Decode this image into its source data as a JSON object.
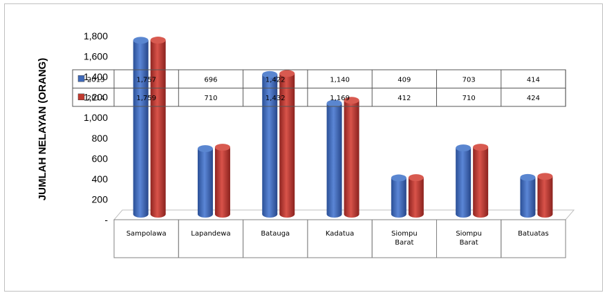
{
  "chart_data": {
    "type": "bar",
    "ylabel": "JUMLAH NELAYAN (ORANG)",
    "ylim": [
      0,
      1800
    ],
    "yticks": [
      "-",
      "200",
      "400",
      "600",
      "800",
      "1,000",
      "1,200",
      "1,400",
      "1,600",
      "1,800"
    ],
    "categories": [
      [
        "Sampolawa"
      ],
      [
        "Lapandewa"
      ],
      [
        "Batauga"
      ],
      [
        "Kadatua"
      ],
      [
        "Siompu",
        "Barat"
      ],
      [
        "Siompu",
        "Barat"
      ],
      [
        "Batuatas"
      ]
    ],
    "series": [
      {
        "name": "2013",
        "color": "#3f69b8",
        "values": [
          1757,
          696,
          1422,
          1140,
          409,
          703,
          414
        ],
        "labels": [
          "1,757",
          "696",
          "1,422",
          "1,140",
          "409",
          "703",
          "414"
        ]
      },
      {
        "name": "2014",
        "color": "#c0392f",
        "values": [
          1759,
          710,
          1432,
          1169,
          412,
          710,
          424
        ],
        "labels": [
          "1,759",
          "710",
          "1,432",
          "1,169",
          "412",
          "710",
          "424"
        ]
      }
    ],
    "grid": false,
    "legend": "data-table"
  }
}
